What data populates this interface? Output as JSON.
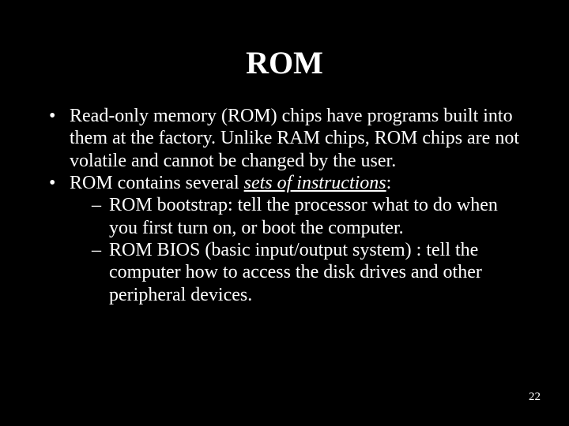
{
  "background_color": "#000000",
  "text_color": "#ffffff",
  "font_family": "Times New Roman",
  "title": {
    "text": "ROM",
    "font_size": 40,
    "font_weight": "bold",
    "align": "center"
  },
  "body_font_size": 24,
  "bullets": [
    {
      "pre": "Read-only memory (ROM) chips have programs built into them at the factory. Unlike RAM chips, ROM chips are not volatile and cannot be changed by the user."
    },
    {
      "pre": "ROM contains several ",
      "emph": "sets of instructions",
      "post": ":",
      "sub": [
        "ROM bootstrap: tell the processor what to do when you first turn on, or boot the computer.",
        "ROM BIOS (basic input/output system) : tell the computer how to access the disk drives and other peripheral devices."
      ]
    }
  ],
  "page_number": "22",
  "emph_style": {
    "italic": true,
    "underline": true
  }
}
